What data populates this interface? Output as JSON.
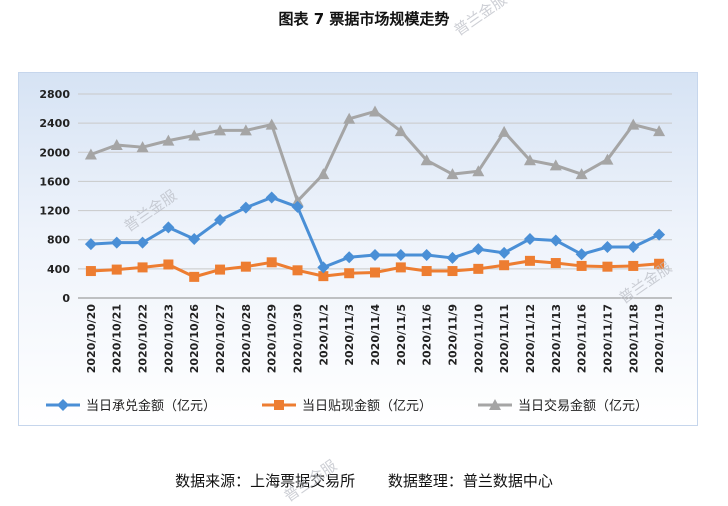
{
  "title": "图表 7  票据市场规模走势",
  "watermark": "普兰金服",
  "source": "数据来源：上海票据交易所",
  "compiler": "数据整理：普兰数据中心",
  "chart_data": {
    "type": "line",
    "title": "",
    "xlabel": "",
    "ylabel": "",
    "ylim": [
      0,
      2800
    ],
    "yticks": [
      0,
      400,
      800,
      1200,
      1600,
      2000,
      2400,
      2800
    ],
    "grid": true,
    "legend_position": "bottom",
    "categories": [
      "2020/10/20",
      "2020/10/21",
      "2020/10/22",
      "2020/10/23",
      "2020/10/26",
      "2020/10/27",
      "2020/10/28",
      "2020/10/29",
      "2020/10/30",
      "2020/11/2",
      "2020/11/3",
      "2020/11/4",
      "2020/11/5",
      "2020/11/6",
      "2020/11/9",
      "2020/11/10",
      "2020/11/11",
      "2020/11/12",
      "2020/11/13",
      "2020/11/16",
      "2020/11/17",
      "2020/11/18",
      "2020/11/19"
    ],
    "series": [
      {
        "name": "当日承兑金额（亿元）",
        "color": "#4a8fd6",
        "marker": "diamond",
        "values": [
          740,
          760,
          760,
          970,
          810,
          1070,
          1240,
          1380,
          1250,
          420,
          560,
          590,
          590,
          590,
          550,
          670,
          620,
          810,
          790,
          600,
          700,
          700,
          870
        ]
      },
      {
        "name": "当日贴现金额（亿元）",
        "color": "#ed7d31",
        "marker": "square",
        "values": [
          370,
          390,
          420,
          460,
          290,
          390,
          430,
          490,
          380,
          300,
          340,
          350,
          420,
          370,
          370,
          400,
          450,
          510,
          480,
          440,
          430,
          440,
          470
        ]
      },
      {
        "name": "当日交易金额（亿元）",
        "color": "#a5a5a5",
        "marker": "triangle",
        "values": [
          1970,
          2100,
          2070,
          2160,
          2230,
          2300,
          2300,
          2380,
          1330,
          1700,
          2460,
          2560,
          2290,
          1890,
          1700,
          1740,
          2280,
          1890,
          1820,
          1700,
          1900,
          2380,
          2290
        ]
      }
    ]
  }
}
